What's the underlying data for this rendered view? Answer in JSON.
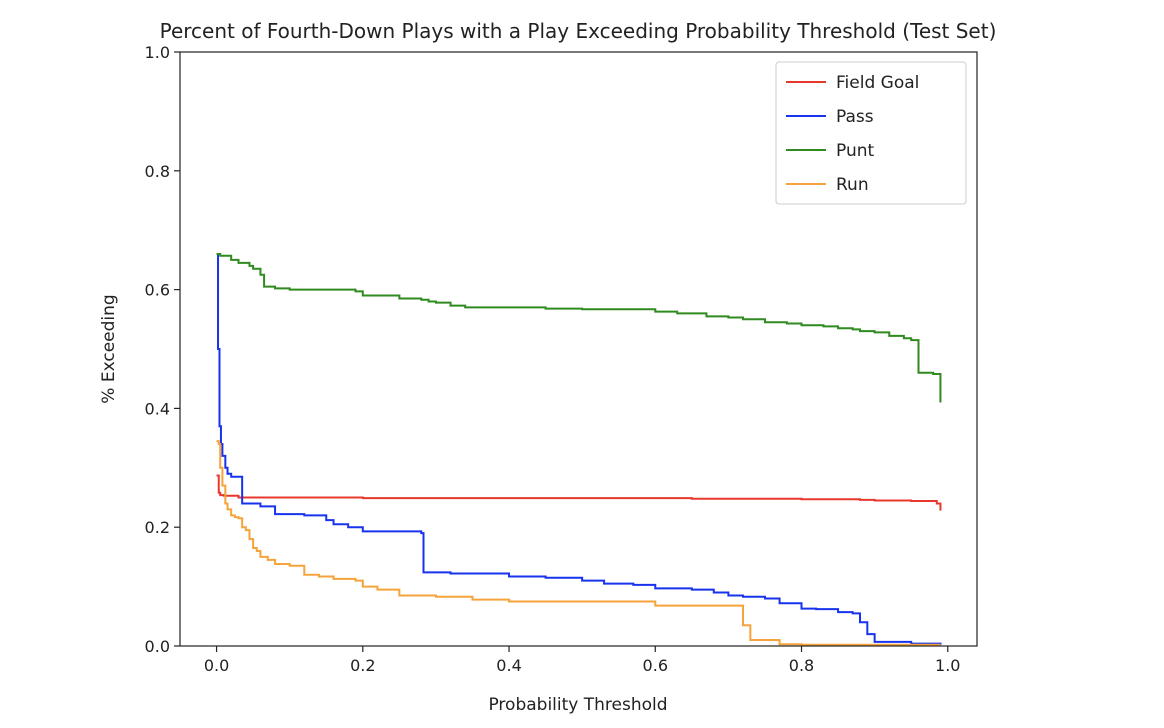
{
  "chart_data": {
    "type": "line",
    "title": "Percent of Fourth-Down Plays with a Play Exceeding Probability Threshold (Test Set)",
    "xlabel": "Probability Threshold",
    "ylabel": "% Exceeding",
    "xlim": [
      -0.05,
      1.04
    ],
    "ylim": [
      0.0,
      1.0
    ],
    "xticks": [
      0.0,
      0.2,
      0.4,
      0.6,
      0.8,
      1.0
    ],
    "xtick_labels": [
      "0.0",
      "0.2",
      "0.4",
      "0.6",
      "0.8",
      "1.0"
    ],
    "yticks": [
      0.0,
      0.2,
      0.4,
      0.6,
      0.8,
      1.0
    ],
    "ytick_labels": [
      "0.0",
      "0.2",
      "0.4",
      "0.6",
      "0.8",
      "1.0"
    ],
    "grid": false,
    "legend_position": "top-right",
    "series": [
      {
        "name": "Field Goal",
        "color": "#e8382e",
        "step": true,
        "x": [
          0.0,
          0.003,
          0.005,
          0.01,
          0.03,
          0.2,
          0.4,
          0.6,
          0.65,
          0.8,
          0.88,
          0.9,
          0.95,
          0.985,
          0.99
        ],
        "y": [
          0.287,
          0.258,
          0.254,
          0.253,
          0.25,
          0.249,
          0.249,
          0.249,
          0.248,
          0.247,
          0.246,
          0.245,
          0.244,
          0.24,
          0.228
        ]
      },
      {
        "name": "Pass",
        "color": "#1733ee",
        "step": true,
        "x": [
          0.0,
          0.002,
          0.004,
          0.006,
          0.008,
          0.012,
          0.015,
          0.02,
          0.035,
          0.06,
          0.08,
          0.12,
          0.15,
          0.16,
          0.18,
          0.2,
          0.28,
          0.283,
          0.32,
          0.4,
          0.45,
          0.5,
          0.53,
          0.57,
          0.6,
          0.65,
          0.68,
          0.7,
          0.72,
          0.75,
          0.77,
          0.8,
          0.82,
          0.85,
          0.87,
          0.88,
          0.89,
          0.9,
          0.95,
          0.99
        ],
        "y": [
          0.66,
          0.5,
          0.37,
          0.34,
          0.32,
          0.3,
          0.29,
          0.285,
          0.24,
          0.235,
          0.222,
          0.22,
          0.212,
          0.205,
          0.2,
          0.193,
          0.19,
          0.124,
          0.122,
          0.117,
          0.115,
          0.11,
          0.105,
          0.103,
          0.097,
          0.095,
          0.09,
          0.085,
          0.083,
          0.08,
          0.072,
          0.063,
          0.062,
          0.057,
          0.055,
          0.04,
          0.02,
          0.007,
          0.004,
          0.002
        ]
      },
      {
        "name": "Punt",
        "color": "#2f8a1f",
        "step": true,
        "x": [
          0.0,
          0.005,
          0.02,
          0.03,
          0.045,
          0.05,
          0.06,
          0.065,
          0.08,
          0.1,
          0.18,
          0.19,
          0.2,
          0.22,
          0.25,
          0.28,
          0.29,
          0.3,
          0.32,
          0.34,
          0.4,
          0.45,
          0.5,
          0.56,
          0.6,
          0.63,
          0.67,
          0.7,
          0.72,
          0.75,
          0.78,
          0.8,
          0.83,
          0.85,
          0.87,
          0.88,
          0.9,
          0.92,
          0.94,
          0.95,
          0.96,
          0.98,
          0.99
        ],
        "y": [
          0.66,
          0.657,
          0.65,
          0.645,
          0.64,
          0.635,
          0.625,
          0.605,
          0.602,
          0.6,
          0.6,
          0.597,
          0.59,
          0.59,
          0.585,
          0.583,
          0.58,
          0.578,
          0.573,
          0.57,
          0.57,
          0.568,
          0.567,
          0.567,
          0.563,
          0.56,
          0.555,
          0.553,
          0.55,
          0.545,
          0.543,
          0.54,
          0.538,
          0.535,
          0.533,
          0.53,
          0.528,
          0.522,
          0.518,
          0.515,
          0.46,
          0.458,
          0.41
        ]
      },
      {
        "name": "Run",
        "color": "#f5a33a",
        "step": true,
        "x": [
          0.0,
          0.003,
          0.005,
          0.008,
          0.012,
          0.015,
          0.02,
          0.025,
          0.03,
          0.035,
          0.04,
          0.045,
          0.05,
          0.055,
          0.06,
          0.07,
          0.08,
          0.1,
          0.12,
          0.14,
          0.16,
          0.19,
          0.2,
          0.22,
          0.25,
          0.3,
          0.35,
          0.4,
          0.45,
          0.5,
          0.55,
          0.58,
          0.6,
          0.65,
          0.7,
          0.72,
          0.73,
          0.75,
          0.77,
          0.8,
          0.9,
          0.99
        ],
        "y": [
          0.345,
          0.34,
          0.3,
          0.27,
          0.24,
          0.23,
          0.22,
          0.217,
          0.215,
          0.2,
          0.195,
          0.18,
          0.165,
          0.16,
          0.15,
          0.145,
          0.138,
          0.135,
          0.12,
          0.117,
          0.113,
          0.11,
          0.1,
          0.095,
          0.085,
          0.083,
          0.078,
          0.075,
          0.075,
          0.075,
          0.075,
          0.075,
          0.068,
          0.068,
          0.068,
          0.035,
          0.01,
          0.01,
          0.003,
          0.002,
          0.002,
          0.002
        ]
      }
    ]
  }
}
